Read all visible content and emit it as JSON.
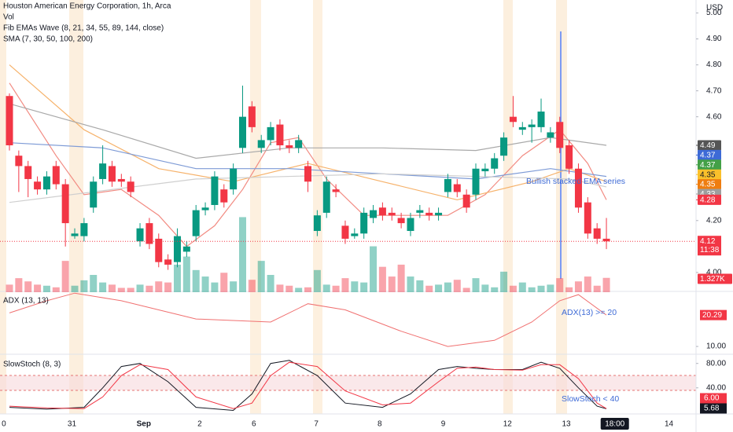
{
  "chart_data": {
    "type": "candlestick",
    "title": "Houston American Energy Corporation, 1h, Arca",
    "currency": "USD",
    "indicator_labels": [
      "Vol",
      "Fib EMAs Wave (8, 21, 34, 55, 89, 144, close)",
      "SMA (7, 30, 50, 100, 200)"
    ],
    "annotations": [
      "Bullish stacked EMA series",
      "ADX(13) >= 20",
      "SlowStoch < 40"
    ],
    "up_color": "#089981",
    "down_color": "#f23645",
    "ylim": [
      3.93,
      5.05
    ],
    "yticks": [
      {
        "value": 4,
        "label": "4.00"
      },
      {
        "value": 4.2,
        "label": "4.20"
      },
      {
        "value": 4.6,
        "label": "4.60"
      },
      {
        "value": 4.7,
        "label": "4.70"
      },
      {
        "value": 4.8,
        "label": "4.80"
      },
      {
        "value": 4.9,
        "label": "4.90"
      },
      {
        "value": 5,
        "label": "5.00"
      }
    ],
    "open": [
      4.68,
      4.45,
      4.41,
      4.35,
      4.32,
      4.41,
      4.34,
      4.14,
      4.14,
      4.25,
      4.36,
      4.41,
      4.36,
      4.35,
      4.12,
      4.19,
      4.13,
      4.05,
      4.04,
      4.08,
      4.14,
      4.24,
      4.26,
      4.32,
      4.32,
      4.48,
      4.64,
      4.48,
      4.51,
      4.57,
      4.49,
      4.48,
      4.41,
      4.16,
      4.23,
      4.32,
      4.18,
      4.14,
      4.15,
      4.21,
      4.25,
      4.23,
      4.21,
      4.16,
      4.23,
      4.23,
      4.22,
      4.31,
      4.34,
      4.3,
      4.3,
      4.39,
      4.4,
      4.45,
      4.6,
      4.55,
      4.56,
      4.56,
      4.52,
      4.58,
      4.49,
      4.4,
      4.27,
      4.17,
      4.13
    ],
    "close": [
      4.49,
      4.41,
      4.36,
      4.32,
      4.37,
      4.34,
      4.19,
      4.15,
      4.19,
      4.35,
      4.42,
      4.35,
      4.35,
      4.31,
      4.17,
      4.11,
      4.04,
      4.03,
      4.14,
      4.1,
      4.24,
      4.25,
      4.37,
      4.27,
      4.4,
      4.6,
      4.56,
      4.51,
      4.56,
      4.49,
      4.48,
      4.51,
      4.35,
      4.22,
      4.35,
      4.31,
      4.13,
      4.15,
      4.23,
      4.24,
      4.22,
      4.22,
      4.19,
      4.21,
      4.24,
      4.22,
      4.23,
      4.36,
      4.31,
      4.25,
      4.4,
      4.4,
      4.44,
      4.52,
      4.58,
      4.56,
      4.57,
      4.62,
      4.54,
      4.48,
      4.4,
      4.25,
      4.15,
      4.13,
      4.12
    ],
    "high": [
      4.69,
      4.47,
      4.43,
      4.37,
      4.39,
      4.43,
      4.36,
      4.17,
      4.21,
      4.37,
      4.49,
      4.43,
      4.38,
      4.37,
      4.19,
      4.21,
      4.15,
      4.07,
      4.17,
      4.12,
      4.26,
      4.27,
      4.39,
      4.34,
      4.42,
      4.72,
      4.66,
      4.53,
      4.58,
      4.59,
      4.51,
      4.53,
      4.43,
      4.24,
      4.37,
      4.34,
      4.2,
      4.17,
      4.25,
      4.26,
      4.27,
      4.25,
      4.23,
      4.23,
      4.26,
      4.25,
      4.25,
      4.38,
      4.36,
      4.32,
      4.42,
      4.42,
      4.46,
      4.54,
      4.68,
      4.58,
      4.59,
      4.67,
      4.56,
      4.6,
      4.51,
      4.42,
      4.29,
      4.19,
      4.21
    ],
    "low": [
      4.47,
      4.31,
      4.29,
      4.3,
      4.3,
      4.32,
      4.1,
      4.13,
      4.12,
      4.23,
      4.34,
      4.33,
      4.33,
      4.29,
      4.1,
      4.09,
      4.02,
      4.01,
      4.02,
      4.06,
      4.12,
      4.22,
      4.24,
      4.25,
      4.3,
      4.46,
      4.54,
      4.46,
      4.49,
      4.47,
      4.46,
      4.46,
      4.31,
      4.14,
      4.21,
      4.29,
      4.11,
      4.13,
      4.13,
      4.19,
      4.2,
      4.2,
      4.17,
      4.14,
      4.21,
      4.2,
      4.2,
      4.29,
      4.29,
      4.23,
      4.28,
      4.37,
      4.38,
      4.43,
      4.56,
      4.53,
      4.5,
      4.54,
      4.5,
      4.46,
      4.38,
      4.23,
      4.13,
      4.11,
      4.09
    ],
    "volume": [
      700,
      1300,
      1000,
      700,
      600,
      450,
      2900,
      600,
      1100,
      1600,
      900,
      700,
      400,
      400,
      700,
      600,
      1000,
      900,
      2550,
      3300,
      2050,
      1450,
      900,
      1800,
      1000,
      6950,
      1150,
      2900,
      1600,
      700,
      600,
      400,
      450,
      2050,
      700,
      600,
      1300,
      1000,
      900,
      4250,
      2350,
      1450,
      2550,
      1450,
      1100,
      600,
      700,
      900,
      1150,
      400,
      1300,
      700,
      450,
      1900,
      600,
      900,
      450,
      600,
      700,
      1300,
      450,
      1000,
      1450,
      600,
      1327
    ],
    "volume_ylim": [
      0,
      8000
    ],
    "lines": [
      {
        "color": "#f28b82",
        "x": [
          0,
          5,
          8,
          12,
          16,
          19,
          22,
          25,
          28,
          31,
          34,
          38,
          42,
          47,
          51,
          55,
          59,
          62,
          64
        ],
        "values": [
          4.73,
          4.45,
          4.3,
          4.32,
          4.22,
          4.1,
          4.18,
          4.32,
          4.5,
          4.52,
          4.36,
          4.22,
          4.22,
          4.22,
          4.3,
          4.45,
          4.55,
          4.42,
          4.28
        ]
      },
      {
        "color": "#f6b26b",
        "x": [
          0,
          8,
          16,
          24,
          32,
          40,
          48,
          56,
          60,
          64
        ],
        "values": [
          4.8,
          4.55,
          4.4,
          4.35,
          4.42,
          4.35,
          4.28,
          4.35,
          4.4,
          4.35
        ]
      },
      {
        "color": "#7e9bd6",
        "x": [
          0,
          10,
          20,
          30,
          40,
          50,
          58,
          64
        ],
        "values": [
          4.5,
          4.48,
          4.4,
          4.4,
          4.38,
          4.36,
          4.4,
          4.37
        ]
      },
      {
        "color": "#a9a9a9",
        "x": [
          0,
          10,
          20,
          30,
          40,
          50,
          58,
          64
        ],
        "values": [
          4.65,
          4.55,
          4.44,
          4.48,
          4.48,
          4.47,
          4.52,
          4.49
        ]
      },
      {
        "color": "#cfcfcf",
        "x": [
          0,
          20,
          40,
          60,
          64
        ],
        "values": [
          4.27,
          4.36,
          4.38,
          4.36,
          4.33
        ]
      }
    ],
    "price_badges": [
      {
        "value": 4.49,
        "label": "4.49",
        "color": "#555555"
      },
      {
        "value": 4.37,
        "label": "4.37",
        "color": "#3d6ad6"
      },
      {
        "value": 4.37,
        "label": "4.37",
        "color": "#43a047"
      },
      {
        "value": 4.35,
        "label": "4.35",
        "color": "#f9c02b"
      },
      {
        "value": 4.35,
        "label": "4.35",
        "color": "#ef7d0f"
      },
      {
        "value": 4.33,
        "label": "4.33",
        "color": "#9e9e9e"
      },
      {
        "value": 4.28,
        "label": "4.28",
        "color": "#f23645"
      }
    ],
    "last_price": {
      "value": 4.12,
      "label": "4.12",
      "countdown": "11:38"
    },
    "volume_badge": {
      "value": 1327,
      "label": "1.327K"
    },
    "adx": {
      "label": "ADX (13, 13)",
      "color": "#f07070",
      "ylim": [
        7.7,
        27.8
      ],
      "yticks": [
        {
          "value": 10,
          "label": "10.00"
        }
      ],
      "x": [
        0,
        4,
        7,
        12,
        20,
        28,
        32,
        36,
        42,
        47,
        52,
        56,
        59,
        61,
        64
      ],
      "values": [
        21,
        25,
        27.5,
        25,
        19,
        18,
        24,
        22,
        15,
        10,
        12,
        18,
        25,
        27,
        20.29
      ],
      "badge": {
        "value": 20.29,
        "label": "20.29"
      }
    },
    "stoch": {
      "label": "SlowStoch (8, 3)",
      "ylim": [
        -2.8,
        93.8
      ],
      "yticks": [
        {
          "value": 80,
          "label": "80.00"
        },
        {
          "value": 40,
          "label": "40.00"
        }
      ],
      "x": [
        0,
        4,
        8,
        10,
        12,
        14,
        17,
        20,
        24,
        26,
        28,
        30,
        33,
        36,
        40,
        43,
        46,
        48,
        50,
        52,
        55,
        57,
        59,
        61,
        63,
        64
      ],
      "series": [
        {
          "color": "#131722",
          "values": [
            8,
            5,
            8,
            40,
            75,
            80,
            50,
            8,
            3,
            30,
            80,
            85,
            60,
            15,
            8,
            30,
            70,
            75,
            72,
            70,
            70,
            82,
            72,
            40,
            10,
            5.68
          ],
          "badge": {
            "value": 5.68,
            "label": "5.68"
          }
        },
        {
          "color": "#f23645",
          "values": [
            10,
            7,
            6,
            25,
            60,
            78,
            70,
            25,
            6,
            15,
            60,
            82,
            75,
            35,
            12,
            15,
            50,
            72,
            74,
            70,
            69,
            78,
            78,
            55,
            15,
            6
          ],
          "badge": {
            "value": 6,
            "label": "6.00"
          }
        }
      ]
    },
    "time_labels": [
      {
        "at": -0.6,
        "label": "0"
      },
      {
        "at": 6.7,
        "label": "31"
      },
      {
        "at": 14.4,
        "label": "Sep"
      },
      {
        "at": 20.4,
        "label": "2"
      },
      {
        "at": 26.2,
        "label": "6"
      },
      {
        "at": 32.9,
        "label": "7"
      },
      {
        "at": 39.7,
        "label": "8"
      },
      {
        "at": 46.5,
        "label": "9"
      },
      {
        "at": 53.4,
        "label": "12"
      },
      {
        "at": 59.7,
        "label": "13"
      },
      {
        "at": 70.7,
        "label": "14"
      }
    ],
    "time_badge": {
      "at": 64.9,
      "label": "18:00"
    }
  }
}
